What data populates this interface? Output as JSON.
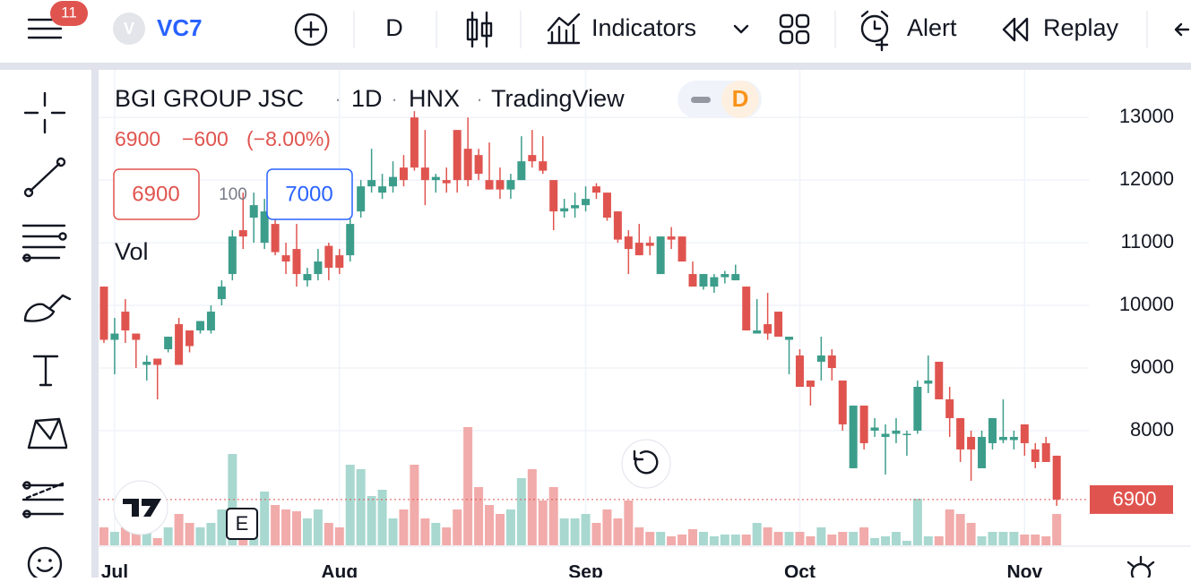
{
  "toolbar": {
    "badge": "11",
    "symbol_initial": "V",
    "symbol": "VC7",
    "interval": "D",
    "indicators": "Indicators",
    "alert": "Alert",
    "replay": "Replay"
  },
  "legend": {
    "name": "BGI GROUP JSC",
    "sep": "·",
    "interval": "1D",
    "exchange": "HNX",
    "source": "TradingView",
    "badge": "D",
    "last": "6900",
    "change": "−600",
    "change_pct": "(−8.00%)",
    "sell": "6900",
    "qty": "100",
    "buy": "7000",
    "volume": "Vol"
  },
  "marker": "E",
  "chart_data": {
    "type": "candlestick",
    "open": [
      10300,
      9450,
      9900,
      9550,
      9050,
      9150,
      9300,
      9700,
      9600,
      9600,
      9600,
      10100,
      10500,
      11200,
      11400,
      11000,
      11300,
      10800,
      10900,
      10400,
      10500,
      10950,
      10800,
      10800,
      11500,
      11900,
      11800,
      11900,
      12200,
      13000,
      12200,
      12000,
      12000,
      12800,
      12500,
      12400,
      12000,
      12000,
      11850,
      12000,
      12400,
      12300,
      12000,
      11500,
      11550,
      11600,
      11900,
      11800,
      11500,
      11100,
      11000,
      11000,
      10500,
      11100,
      11100,
      10500,
      10300,
      10300,
      10450,
      10400,
      10300,
      9550,
      9700,
      9900,
      9450,
      9200,
      8800,
      9100,
      9200,
      8800,
      7400,
      8400,
      8000,
      7900,
      7950,
      7950,
      8000,
      8750,
      9100,
      8500,
      8200,
      7900,
      7400,
      7800,
      7850,
      7850,
      8100,
      7700,
      7800,
      7600
    ],
    "high": [
      10300,
      9800,
      10100,
      9550,
      9200,
      9150,
      9500,
      9800,
      9600,
      9750,
      10000,
      10400,
      11200,
      11800,
      11800,
      11700,
      11600,
      11000,
      11300,
      10600,
      10900,
      11000,
      10900,
      11500,
      12000,
      12500,
      12100,
      12300,
      12400,
      13100,
      12800,
      12100,
      12200,
      12800,
      13000,
      12500,
      12600,
      12200,
      12100,
      12700,
      12800,
      12700,
      12000,
      11700,
      11800,
      11900,
      11950,
      11800,
      11500,
      11200,
      11300,
      11100,
      11100,
      11250,
      11100,
      10700,
      10500,
      10500,
      10550,
      10650,
      10300,
      10100,
      10200,
      9900,
      9500,
      9300,
      8800,
      9500,
      9300,
      8800,
      8400,
      8400,
      8200,
      8100,
      8200,
      8000,
      8800,
      9200,
      9100,
      8700,
      8200,
      8000,
      8000,
      8200,
      8500,
      8000,
      8100,
      7800,
      7900,
      7600
    ],
    "low": [
      9400,
      8900,
      9400,
      9000,
      8800,
      8500,
      9250,
      9050,
      9250,
      9550,
      9550,
      10000,
      10400,
      10900,
      11000,
      10900,
      10800,
      10500,
      10300,
      10300,
      10400,
      10400,
      10500,
      10700,
      11400,
      11800,
      11700,
      11800,
      11900,
      12150,
      11600,
      11800,
      11800,
      11800,
      11900,
      12000,
      11850,
      11700,
      11700,
      12000,
      12200,
      12100,
      11200,
      11400,
      11400,
      11500,
      11700,
      11350,
      11000,
      10500,
      10800,
      10800,
      10500,
      10900,
      10700,
      10300,
      10250,
      10200,
      10350,
      10400,
      9600,
      9550,
      9450,
      9500,
      8900,
      8700,
      8400,
      8800,
      8800,
      8000,
      7400,
      7700,
      7900,
      7300,
      7800,
      7600,
      7950,
      8600,
      8500,
      7900,
      7500,
      7200,
      7400,
      7700,
      7800,
      7700,
      7600,
      7400,
      7500,
      6800
    ],
    "close": [
      9450,
      9550,
      9600,
      9450,
      9100,
      9050,
      9500,
      9050,
      9350,
      9750,
      9900,
      10300,
      11100,
      11100,
      11600,
      11500,
      10850,
      10700,
      10500,
      10500,
      10700,
      10600,
      10600,
      11300,
      11900,
      12000,
      11900,
      12050,
      12000,
      12200,
      12000,
      12050,
      11950,
      12000,
      12000,
      12100,
      11850,
      11850,
      12000,
      12300,
      12300,
      12150,
      11500,
      11550,
      11600,
      11700,
      11800,
      11400,
      11050,
      10900,
      10800,
      10950,
      11100,
      11050,
      10700,
      10300,
      10500,
      10450,
      10500,
      10500,
      9600,
      9600,
      9550,
      9500,
      9500,
      8700,
      8700,
      9200,
      9000,
      8100,
      8400,
      7800,
      8050,
      7950,
      8000,
      7950,
      8700,
      8800,
      8500,
      8200,
      7700,
      7700,
      7900,
      8200,
      7900,
      7900,
      7800,
      7500,
      7500,
      6900
    ],
    "volume": [
      20,
      15,
      20,
      15,
      20,
      8,
      20,
      35,
      25,
      20,
      25,
      40,
      102,
      35,
      40,
      60,
      45,
      40,
      38,
      30,
      40,
      25,
      20,
      90,
      85,
      55,
      62,
      30,
      40,
      90,
      30,
      25,
      20,
      40,
      132,
      65,
      45,
      35,
      40,
      75,
      85,
      50,
      65,
      30,
      30,
      35,
      25,
      40,
      30,
      50,
      20,
      15,
      15,
      10,
      12,
      18,
      15,
      10,
      12,
      12,
      12,
      25,
      20,
      15,
      15,
      15,
      10,
      20,
      12,
      15,
      15,
      20,
      8,
      10,
      15,
      5,
      52,
      10,
      10,
      40,
      35,
      25,
      10,
      15,
      15,
      15,
      12,
      12,
      10,
      35
    ],
    "ylim": [
      6170,
      13760
    ],
    "yticks": [
      8000,
      9000,
      10000,
      11000,
      12000,
      13000
    ],
    "volume_lim": [
      0,
      140
    ],
    "xlim": [
      -0.5,
      92
    ],
    "xticks": [
      {
        "value": 1,
        "label": "Jul"
      },
      {
        "value": 22,
        "label": "Aug"
      },
      {
        "value": 45,
        "label": "Sep"
      },
      {
        "value": 65,
        "label": "Oct"
      },
      {
        "value": 86,
        "label": "Nov"
      }
    ],
    "last_price": 6900,
    "grid": true,
    "up_color": "#3c9d8b",
    "down_color": "#e0544f",
    "up_volume_color": "#a8d8d0",
    "down_volume_color": "#f1abaa"
  }
}
